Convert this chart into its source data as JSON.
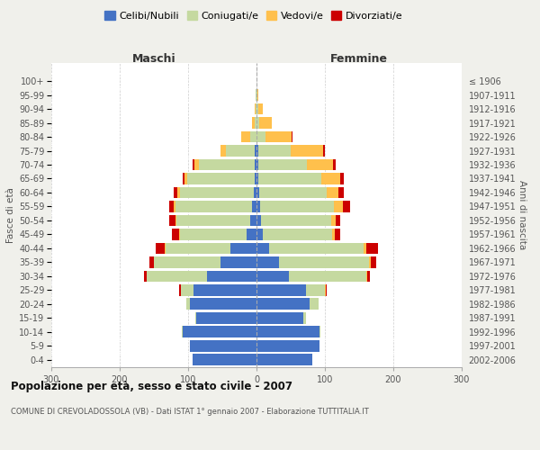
{
  "age_groups_bottom_to_top": [
    "0-4",
    "5-9",
    "10-14",
    "15-19",
    "20-24",
    "25-29",
    "30-34",
    "35-39",
    "40-44",
    "45-49",
    "50-54",
    "55-59",
    "60-64",
    "65-69",
    "70-74",
    "75-79",
    "80-84",
    "85-89",
    "90-94",
    "95-99",
    "100+"
  ],
  "birth_years_bottom_to_top": [
    "2002-2006",
    "1997-2001",
    "1992-1996",
    "1987-1991",
    "1982-1986",
    "1977-1981",
    "1972-1976",
    "1967-1971",
    "1962-1966",
    "1957-1961",
    "1952-1956",
    "1947-1951",
    "1942-1946",
    "1937-1941",
    "1932-1936",
    "1927-1931",
    "1922-1926",
    "1917-1921",
    "1912-1916",
    "1907-1911",
    "≤ 1906"
  ],
  "males_celibi": [
    93,
    98,
    108,
    88,
    98,
    92,
    72,
    52,
    38,
    14,
    9,
    7,
    4,
    3,
    2,
    2,
    0,
    0,
    0,
    0,
    0
  ],
  "males_coniugati": [
    0,
    0,
    1,
    1,
    4,
    18,
    88,
    98,
    95,
    98,
    108,
    112,
    108,
    98,
    82,
    43,
    9,
    3,
    1,
    1,
    0
  ],
  "males_vedovi": [
    0,
    0,
    0,
    0,
    0,
    1,
    0,
    0,
    1,
    1,
    2,
    2,
    4,
    4,
    7,
    8,
    14,
    4,
    2,
    0,
    0
  ],
  "males_divorziati": [
    0,
    0,
    0,
    0,
    0,
    2,
    4,
    7,
    14,
    11,
    8,
    7,
    5,
    3,
    2,
    0,
    0,
    0,
    0,
    0,
    0
  ],
  "females_nubili": [
    82,
    92,
    92,
    68,
    78,
    72,
    48,
    33,
    18,
    9,
    7,
    5,
    4,
    3,
    2,
    2,
    0,
    0,
    0,
    0,
    0
  ],
  "females_coniugate": [
    0,
    0,
    2,
    4,
    13,
    28,
    112,
    132,
    138,
    102,
    102,
    108,
    98,
    92,
    72,
    48,
    13,
    4,
    2,
    1,
    0
  ],
  "females_vedove": [
    0,
    0,
    0,
    0,
    0,
    1,
    2,
    2,
    4,
    4,
    7,
    13,
    18,
    28,
    38,
    48,
    38,
    18,
    7,
    2,
    0
  ],
  "females_divorziate": [
    0,
    0,
    0,
    0,
    0,
    1,
    4,
    8,
    18,
    8,
    7,
    11,
    7,
    4,
    4,
    2,
    1,
    0,
    0,
    0,
    0
  ],
  "colors": {
    "celibi_nubili": "#4472c4",
    "coniugati_e": "#c5d9a0",
    "vedovi_e": "#ffc04c",
    "divorziati_e": "#cc0000"
  },
  "title": "Popolazione per età, sesso e stato civile - 2007",
  "subtitle": "COMUNE DI CREVOLADOSSOLA (VB) - Dati ISTAT 1° gennaio 2007 - Elaborazione TUTTITALIA.IT",
  "legend_labels": [
    "Celibi/Nubili",
    "Coniugati/e",
    "Vedovi/e",
    "Divorziati/e"
  ],
  "bg_color": "#f0f0eb",
  "plot_bg": "#ffffff",
  "xlim": 300
}
